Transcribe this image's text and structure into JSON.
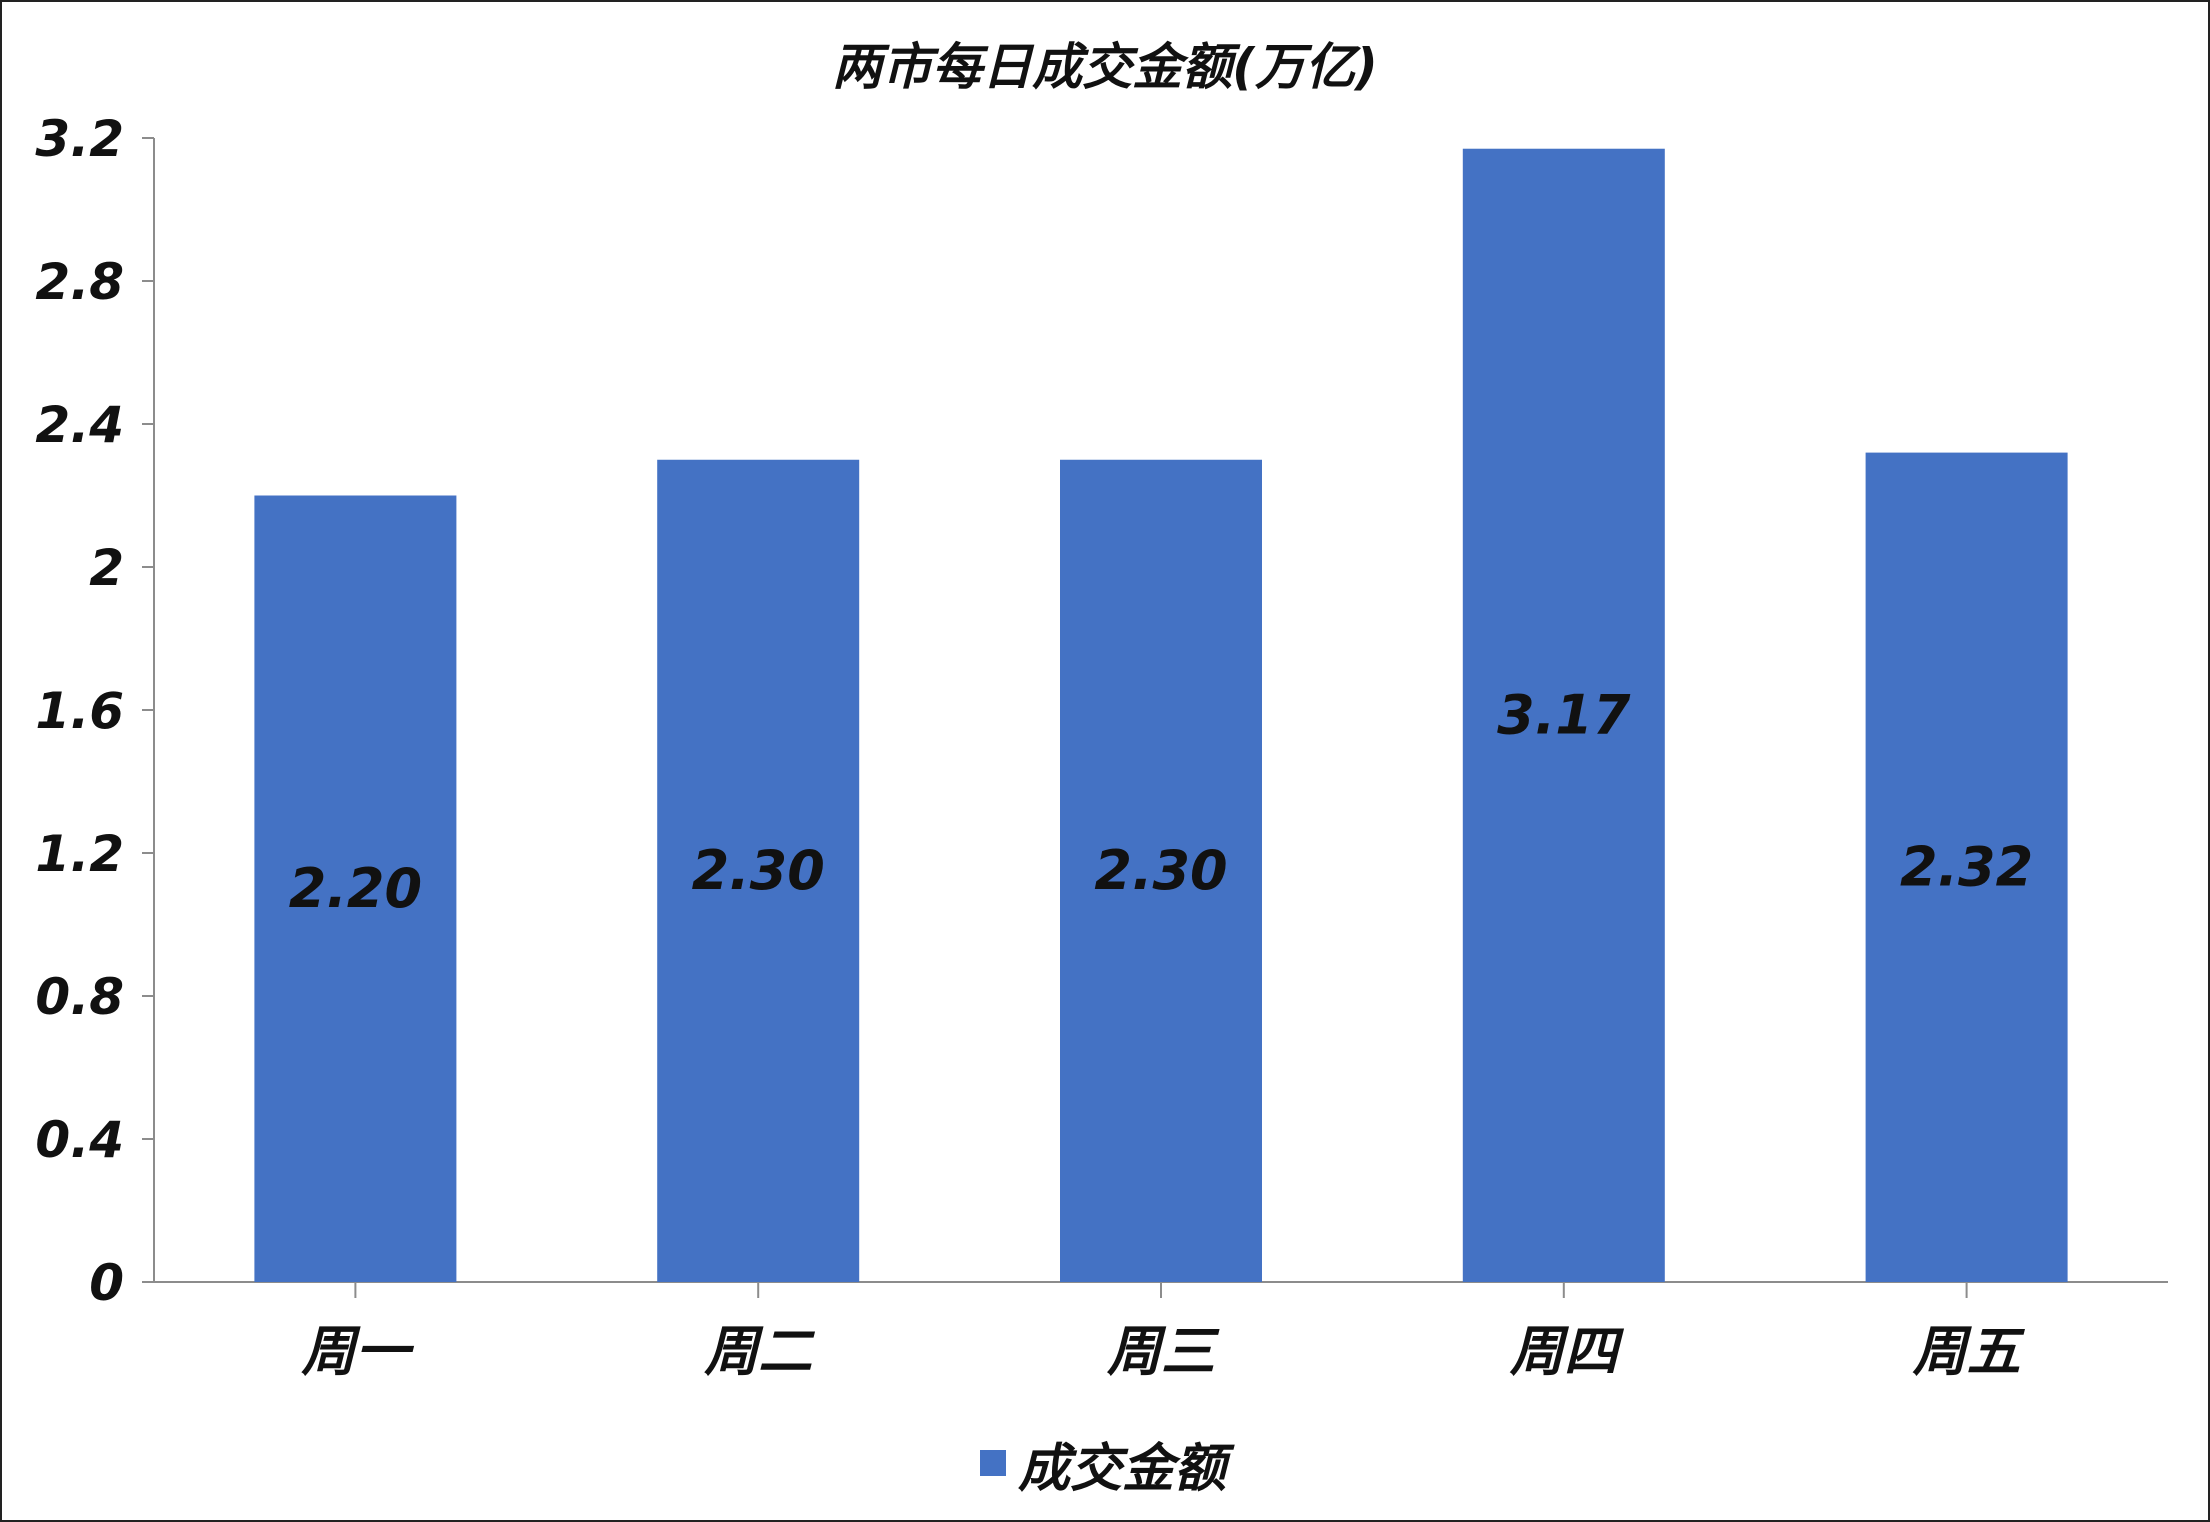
{
  "chart_data": {
    "type": "bar",
    "title": "两市每日成交金额(万亿)",
    "categories": [
      "周一",
      "周二",
      "周三",
      "周四",
      "周五"
    ],
    "series": [
      {
        "name": "成交金额",
        "values": [
          2.2,
          2.3,
          2.3,
          3.17,
          2.32
        ],
        "data_labels": [
          "2.20",
          "2.30",
          "2.30",
          "3.17",
          "2.32"
        ],
        "color": "#4472C4"
      }
    ],
    "ylim": [
      0,
      3.2
    ],
    "yticks": [
      0,
      0.4,
      0.8,
      1.2,
      1.6,
      2,
      2.4,
      2.8,
      3.2
    ],
    "ytick_labels": [
      "0",
      "0.4",
      "0.8",
      "1.2",
      "1.6",
      "2",
      "2.4",
      "2.8",
      "3.2"
    ],
    "xlabel": "",
    "ylabel": "",
    "grid": false,
    "legend_position": "bottom"
  }
}
